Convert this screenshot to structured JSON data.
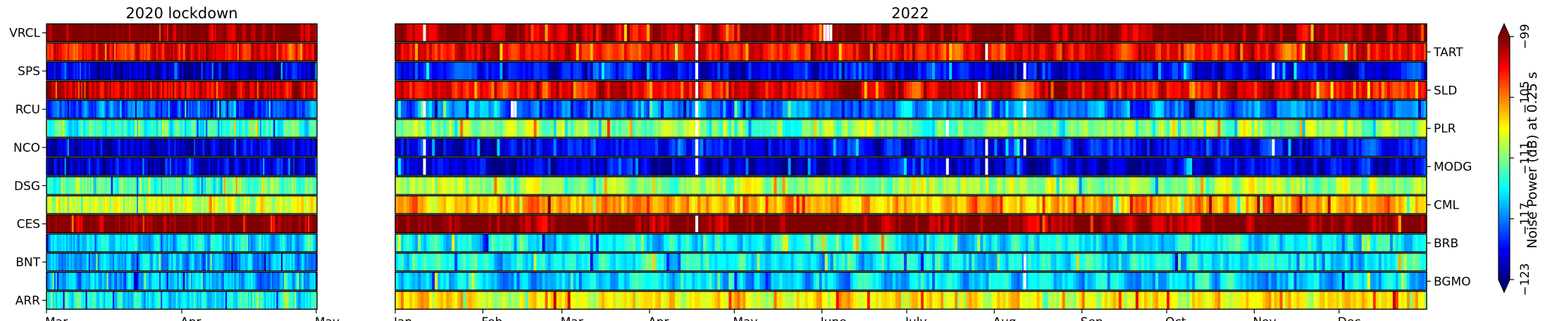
{
  "chart_data": [
    {
      "type": "heatmap",
      "title": "2020 lockdown",
      "stations": [
        "VRCL",
        "",
        "SPS",
        "",
        "RCU",
        "",
        "NCO",
        "",
        "DSG",
        "",
        "CES",
        "",
        "BNT",
        "",
        "ARR"
      ],
      "x_ticks": [
        "Mar.",
        "Apr.",
        "May"
      ],
      "band_noise_db": [
        -99,
        -102,
        -121,
        -101,
        -118,
        -113,
        -121,
        -121,
        -112,
        -109,
        -99,
        -115,
        -116,
        -116,
        -114
      ],
      "gaps": []
    },
    {
      "type": "heatmap",
      "title": "2022",
      "stations": [
        "",
        "TART",
        "",
        "SLD",
        "",
        "PLR",
        "",
        "MODG",
        "",
        "CML",
        "",
        "BRB",
        "",
        "BGMO",
        ""
      ],
      "x_ticks": [
        "Jan.",
        "Feb.",
        "Mar.",
        "Apr.",
        "May",
        "June",
        "July",
        "Aug.",
        "Sep.",
        "Oct.",
        "Nov.",
        "Dec."
      ],
      "band_noise_db": [
        -100,
        -102,
        -120,
        -102,
        -117,
        -111,
        -120,
        -121,
        -110,
        -106,
        -99,
        -114,
        -114,
        -115,
        -108
      ],
      "gaps": [
        [
          0,
          0.027
        ],
        [
          0,
          0.291
        ],
        [
          0,
          0.415
        ],
        [
          0,
          0.418
        ],
        [
          0,
          0.421
        ],
        [
          1,
          0.291
        ],
        [
          1,
          0.572
        ],
        [
          2,
          0.291
        ],
        [
          2,
          0.609
        ],
        [
          2,
          0.85
        ],
        [
          3,
          0.291
        ],
        [
          3,
          0.565
        ],
        [
          4,
          0.027
        ],
        [
          4,
          0.112
        ],
        [
          4,
          0.115
        ],
        [
          4,
          0.291
        ],
        [
          4,
          0.609
        ],
        [
          5,
          0.291
        ],
        [
          5,
          0.534
        ],
        [
          6,
          0.027
        ],
        [
          6,
          0.291
        ],
        [
          6,
          0.572
        ],
        [
          6,
          0.609
        ],
        [
          6,
          0.85
        ],
        [
          7,
          0.027
        ],
        [
          7,
          0.291
        ],
        [
          7,
          0.534
        ],
        [
          7,
          0.572
        ],
        [
          10,
          0.291
        ],
        [
          12,
          0.609
        ],
        [
          13,
          0.609
        ]
      ]
    }
  ],
  "colorbar": {
    "label": "Noise Power (dB) at 0.25 s",
    "ticks": [
      "−123",
      "−117",
      "−111",
      "−105",
      "−99"
    ],
    "range": [
      -123,
      -99
    ],
    "colormap": "jet"
  }
}
